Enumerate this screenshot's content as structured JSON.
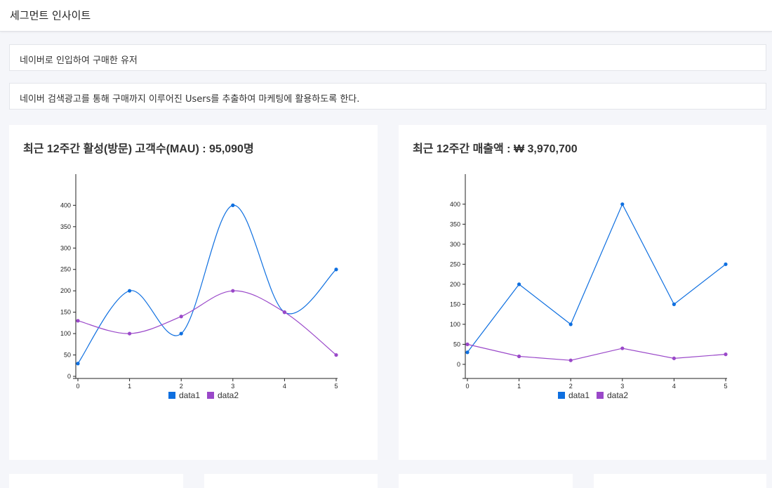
{
  "header": {
    "title": "세그먼트 인사이트"
  },
  "segment": {
    "name": "네이버로 인입하여 구매한 유저",
    "description": "네이버 검색광고를 통해 구매까지 이루어진 Users를 추출하여 마케팅에 활용하도록 한다."
  },
  "cards": [
    {
      "title": "최근 12주간 활성(방문) 고객수(MAU) : 95,090명"
    },
    {
      "title": "최근 12주간 매출액 : ₩ 3,970,700"
    }
  ],
  "colors": {
    "data1": "#0e6fe0",
    "data2": "#9a48c9",
    "axis": "#222222"
  },
  "chart_data": [
    {
      "type": "line",
      "curve": "smooth",
      "x": [
        0,
        1,
        2,
        3,
        4,
        5
      ],
      "ylim": [
        0,
        440
      ],
      "yticks": [
        0,
        50,
        100,
        150,
        200,
        250,
        300,
        350,
        400
      ],
      "series": [
        {
          "name": "data1",
          "values": [
            30,
            200,
            100,
            400,
            150,
            250
          ]
        },
        {
          "name": "data2",
          "values": [
            130,
            100,
            140,
            200,
            150,
            50
          ]
        }
      ],
      "legend": "bottom-center"
    },
    {
      "type": "line",
      "curve": "linear",
      "x": [
        0,
        1,
        2,
        3,
        4,
        5
      ],
      "ylim": [
        -30,
        440
      ],
      "yticks": [
        0,
        50,
        100,
        150,
        200,
        250,
        300,
        350,
        400
      ],
      "series": [
        {
          "name": "data1",
          "values": [
            30,
            200,
            100,
            400,
            150,
            250
          ]
        },
        {
          "name": "data2",
          "values": [
            50,
            20,
            10,
            40,
            15,
            25
          ]
        }
      ],
      "legend": "bottom-center"
    }
  ]
}
